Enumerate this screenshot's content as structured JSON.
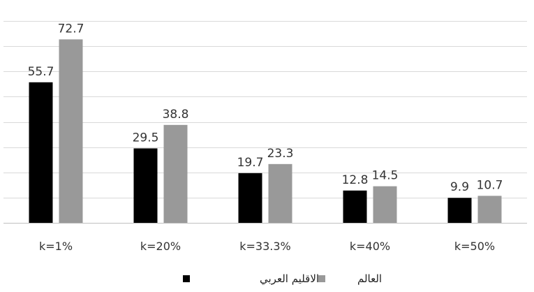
{
  "chart_data": {
    "type": "bar",
    "categories": [
      "k=1%",
      "k=20%",
      "k=33.3%",
      "k=40%",
      "k=50%"
    ],
    "series": [
      {
        "name": "الاقليم العربي",
        "values": [
          55.7,
          29.5,
          19.7,
          12.8,
          9.9
        ],
        "color": "#000000"
      },
      {
        "name": "العالم",
        "values": [
          72.7,
          38.8,
          23.3,
          14.5,
          10.7
        ],
        "color": "#999999"
      }
    ],
    "ylim": [
      0,
      80
    ],
    "grid": true,
    "legend_position": "bottom",
    "data_labels": true
  }
}
